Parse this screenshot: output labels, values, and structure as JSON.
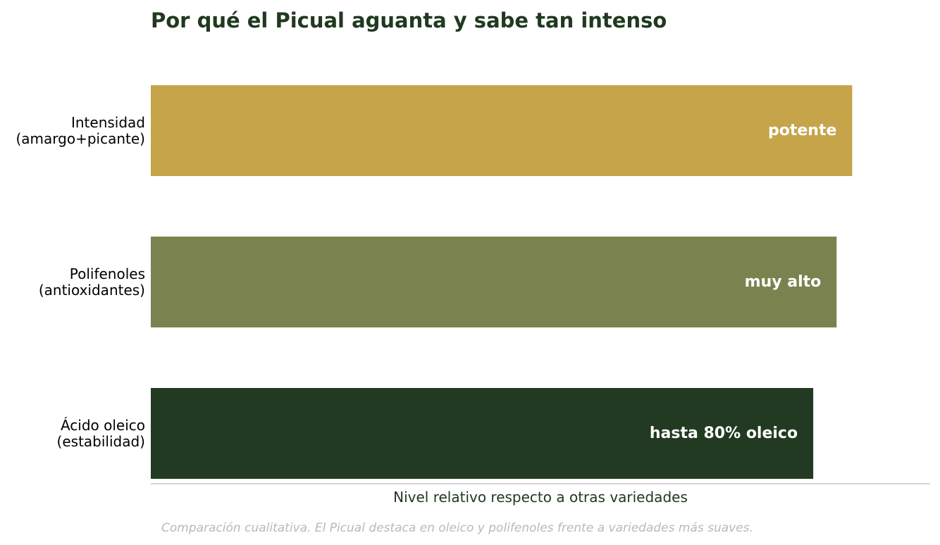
{
  "chart_data": {
    "type": "bar",
    "orientation": "horizontal",
    "title": "Por qué el Picual aguanta y sabe tan intenso",
    "xlabel": "Nivel relativo respecto a otras variedades",
    "ylabel": "",
    "xlim": [
      0,
      100
    ],
    "categories": [
      [
        "Intensidad",
        "(amargo+picante)"
      ],
      [
        "Polifenoles",
        "(antioxidantes)"
      ],
      [
        "Ácido oleico",
        "(estabilidad)"
      ]
    ],
    "values": [
      90,
      88,
      85
    ],
    "value_labels": [
      "potente",
      "muy alto",
      "hasta 80% oleico"
    ],
    "colors": [
      "#c6a44a",
      "#7a834f",
      "#213a21"
    ],
    "grid": false,
    "legend": "none"
  },
  "footnote": "Comparación cualitativa. El Picual destaca en oleico y polifenoles frente a variedades más suaves."
}
